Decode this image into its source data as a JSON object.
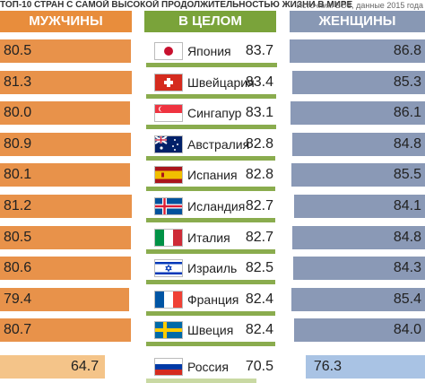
{
  "header": {
    "title": "ТОП-10 СТРАН С САМОЙ ВЫСОКОЙ ПРОДОЛЖИТЕЛЬНОСТЬЮ ЖИЗНИ В МИРЕ",
    "source": "Источник: ВОЗ, данные 2015 года"
  },
  "columns": {
    "men": "МУЖЧИНЫ",
    "overall": "В ЦЕЛОМ",
    "women": "ЖЕНЩИНЫ"
  },
  "colors": {
    "men": "#e8924a",
    "overall": "#7aa33a",
    "women": "#8a99b6",
    "men_russia": "#f4c489",
    "women_russia": "#a9c3e4"
  },
  "chart_data": {
    "type": "bar",
    "title": "ТОП-10 СТРАН С САМОЙ ВЫСОКОЙ ПРОДОЛЖИТЕЛЬНОСТЬЮ ЖИЗНИ В МИРЕ",
    "categories": [
      "Япония",
      "Швейцария",
      "Сингапур",
      "Австралия",
      "Испания",
      "Исландия",
      "Италия",
      "Израиль",
      "Франция",
      "Швеция",
      "Россия"
    ],
    "series": [
      {
        "name": "МУЖЧИНЫ",
        "values": [
          "80.5",
          "81.3",
          "80.0",
          "80.9",
          "80.1",
          "81.2",
          "80.5",
          "80.6",
          "79.4",
          "80.7",
          "64.7"
        ]
      },
      {
        "name": "В ЦЕЛОМ",
        "values": [
          "83.7",
          "83.4",
          "83.1",
          "82.8",
          "82.8",
          "82.7",
          "82.7",
          "82.5",
          "82.4",
          "82.4",
          "70.5"
        ]
      },
      {
        "name": "ЖЕНЩИНЫ",
        "values": [
          "86.8",
          "85.3",
          "86.1",
          "84.8",
          "85.5",
          "84.1",
          "84.8",
          "84.3",
          "85.4",
          "84.0",
          "76.3"
        ]
      }
    ],
    "flag_icons": [
      "flag-japan-icon",
      "flag-switzerland-icon",
      "flag-singapore-icon",
      "flag-australia-icon",
      "flag-spain-icon",
      "flag-iceland-icon",
      "flag-italy-icon",
      "flag-israel-icon",
      "flag-france-icon",
      "flag-sweden-icon",
      "flag-russia-icon"
    ]
  }
}
